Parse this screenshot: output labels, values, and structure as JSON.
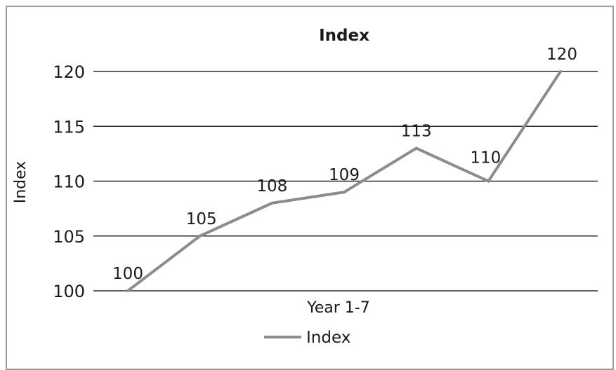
{
  "chart_data": {
    "type": "line",
    "title": "Index",
    "xlabel": "Year 1-7",
    "ylabel": "Index",
    "x": [
      1,
      2,
      3,
      4,
      5,
      6,
      7
    ],
    "series": [
      {
        "name": "Index",
        "values": [
          100,
          105,
          108,
          109,
          113,
          110,
          120
        ],
        "color": "#8c8c8c"
      }
    ],
    "ylim": [
      100,
      120
    ],
    "yticks": [
      100,
      105,
      110,
      115,
      120
    ],
    "grid": true,
    "legend": "bottom",
    "data_labels": [
      "100",
      "105",
      "108",
      "109",
      "113",
      "110",
      "120"
    ]
  }
}
